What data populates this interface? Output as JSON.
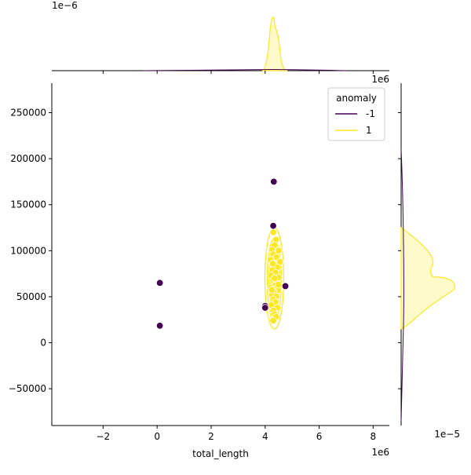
{
  "chart_data": {
    "type": "scatter",
    "title": "",
    "xlabel": "total_length",
    "ylabel": "",
    "xlim": [
      -3.9,
      8.6
    ],
    "ylim": [
      -90000,
      282000
    ],
    "x_multiplier_label": "1e6",
    "y_multiplier_label": "",
    "x_ticks": [
      -2,
      0,
      2,
      4,
      6,
      8
    ],
    "x_tick_labels": [
      "−2",
      "0",
      "2",
      "4",
      "6",
      "8"
    ],
    "y_ticks": [
      -50000,
      0,
      50000,
      100000,
      150000,
      200000,
      250000
    ],
    "y_tick_labels": [
      "−50000",
      "0",
      "50000",
      "100000",
      "150000",
      "200000",
      "250000"
    ],
    "legend": {
      "title": "anomaly",
      "placement": "top-right",
      "entries": [
        {
          "label": "-1",
          "color": "#440154"
        },
        {
          "label": "1",
          "color": "#fde725"
        }
      ]
    },
    "series": [
      {
        "name": "-1",
        "color": "#440154",
        "points": [
          [
            0.1,
            65000
          ],
          [
            0.1,
            18500
          ],
          [
            4.32,
            175000
          ],
          [
            4.3,
            127000
          ],
          [
            4.75,
            61500
          ],
          [
            4.0,
            40000
          ],
          [
            4.0,
            38000
          ]
        ]
      },
      {
        "name": "1",
        "color": "#fde725",
        "points": [
          [
            4.3,
            120000
          ],
          [
            4.4,
            112000
          ],
          [
            4.35,
            106000
          ],
          [
            4.25,
            101000
          ],
          [
            4.5,
            100000
          ],
          [
            4.3,
            96000
          ],
          [
            4.42,
            93000
          ],
          [
            4.2,
            90000
          ],
          [
            4.55,
            88000
          ],
          [
            4.33,
            85000
          ],
          [
            4.45,
            82000
          ],
          [
            4.28,
            79000
          ],
          [
            4.38,
            76000
          ],
          [
            4.22,
            73000
          ],
          [
            4.5,
            71000
          ],
          [
            4.3,
            68000
          ],
          [
            4.4,
            65000
          ],
          [
            4.35,
            62000
          ],
          [
            4.2,
            60000
          ],
          [
            4.48,
            57000
          ],
          [
            4.32,
            55000
          ],
          [
            4.25,
            52000
          ],
          [
            4.42,
            50000
          ],
          [
            4.3,
            47000
          ],
          [
            4.38,
            44000
          ],
          [
            4.22,
            41000
          ],
          [
            4.45,
            38000
          ],
          [
            4.3,
            35000
          ],
          [
            4.35,
            31000
          ],
          [
            4.4,
            28000
          ],
          [
            4.3,
            24000
          ],
          [
            4.25,
            57500
          ],
          [
            4.5,
            63000
          ],
          [
            4.35,
            70000
          ],
          [
            4.28,
            86000
          ]
        ]
      }
    ],
    "marginal_x": {
      "multiplier_label": "1e−6",
      "ylim": [
        0,
        1e-06
      ],
      "peak_x": 4.3,
      "peak_density": 8.5e-07
    },
    "marginal_y": {
      "multiplier_label": "1e−5",
      "xlim": [
        0,
        1e-05
      ],
      "peak_density": 1.05e-05
    }
  }
}
